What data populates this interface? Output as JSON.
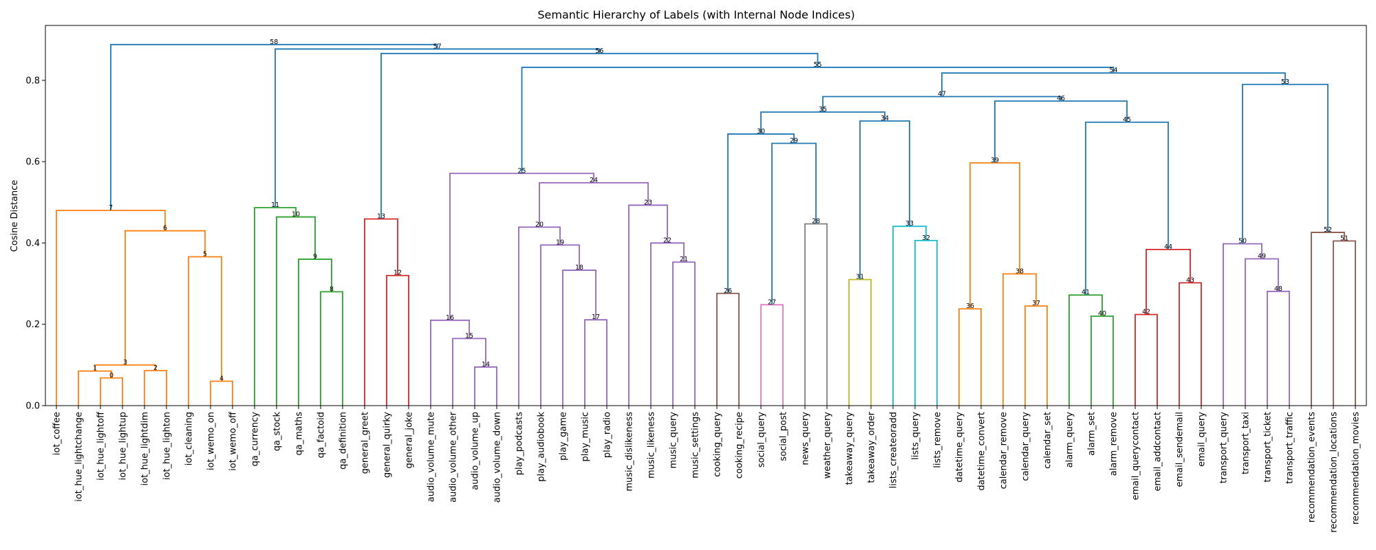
{
  "chart_data": {
    "type": "dendrogram",
    "title": "Semantic Hierarchy of Labels (with Internal Node Indices)",
    "xlabel": "",
    "ylabel": "Cosine Distance",
    "ylim": [
      0,
      0.935
    ],
    "yticks": [
      "0.0",
      "0.2",
      "0.4",
      "0.6",
      "0.8"
    ],
    "ytick_values": [
      0,
      0.2,
      0.4,
      0.6,
      0.8
    ],
    "grid": false,
    "leaves": [
      "iot_coffee",
      "iot_hue_lightchange",
      "iot_hue_lightoff",
      "iot_hue_lightup",
      "iot_hue_lightdim",
      "iot_hue_lighton",
      "iot_cleaning",
      "iot_wemo_on",
      "iot_wemo_off",
      "qa_currency",
      "qa_stock",
      "qa_maths",
      "qa_factoid",
      "qa_definition",
      "general_greet",
      "general_quirky",
      "general_joke",
      "audio_volume_mute",
      "audio_volume_other",
      "audio_volume_up",
      "audio_volume_down",
      "play_podcasts",
      "play_audiobook",
      "play_game",
      "play_music",
      "play_radio",
      "music_dislikeness",
      "music_likeness",
      "music_query",
      "music_settings",
      "cooking_query",
      "cooking_recipe",
      "social_query",
      "social_post",
      "news_query",
      "weather_query",
      "takeaway_query",
      "takeaway_order",
      "lists_createoradd",
      "lists_query",
      "lists_remove",
      "datetime_query",
      "datetime_convert",
      "calendar_remove",
      "calendar_query",
      "calendar_set",
      "alarm_query",
      "alarm_set",
      "alarm_remove",
      "email_querycontact",
      "email_addcontact",
      "email_sendemail",
      "email_query",
      "transport_query",
      "transport_taxi",
      "transport_ticket",
      "transport_traffic",
      "recommendation_events",
      "recommendation_locations",
      "recommendation_movies"
    ],
    "colors": {
      "above": "#1f77b4",
      "orange": "#ff7f0e",
      "green": "#2ca02c",
      "red": "#d62728",
      "purple": "#9467bd",
      "brown": "#8c564b",
      "pink": "#e377c2",
      "gray": "#7f7f7f",
      "olive": "#bcbd22",
      "cyan": "#17becf"
    },
    "merges": [
      {
        "id": 0,
        "left": "iot_hue_lightoff",
        "right": "iot_hue_lightup",
        "height": 0.068,
        "color": "orange"
      },
      {
        "id": 1,
        "left": "iot_hue_lightchange",
        "right": 0,
        "height": 0.085,
        "color": "orange"
      },
      {
        "id": 2,
        "left": "iot_hue_lightdim",
        "right": "iot_hue_lighton",
        "height": 0.086,
        "color": "orange"
      },
      {
        "id": 3,
        "left": 1,
        "right": 2,
        "height": 0.1,
        "color": "orange"
      },
      {
        "id": 4,
        "left": "iot_wemo_on",
        "right": "iot_wemo_off",
        "height": 0.06,
        "color": "orange"
      },
      {
        "id": 5,
        "left": "iot_cleaning",
        "right": 4,
        "height": 0.366,
        "color": "orange"
      },
      {
        "id": 6,
        "left": 3,
        "right": 5,
        "height": 0.43,
        "color": "orange"
      },
      {
        "id": 7,
        "left": "iot_coffee",
        "right": 6,
        "height": 0.48,
        "color": "orange"
      },
      {
        "id": 8,
        "left": "qa_factoid",
        "right": "qa_definition",
        "height": 0.28,
        "color": "green"
      },
      {
        "id": 9,
        "left": "qa_maths",
        "right": 8,
        "height": 0.36,
        "color": "green"
      },
      {
        "id": 10,
        "left": "qa_stock",
        "right": 9,
        "height": 0.464,
        "color": "green"
      },
      {
        "id": 11,
        "left": "qa_currency",
        "right": 10,
        "height": 0.487,
        "color": "green"
      },
      {
        "id": 12,
        "left": "general_quirky",
        "right": "general_joke",
        "height": 0.32,
        "color": "red"
      },
      {
        "id": 13,
        "left": "general_greet",
        "right": 12,
        "height": 0.459,
        "color": "red"
      },
      {
        "id": 14,
        "left": "audio_volume_up",
        "right": "audio_volume_down",
        "height": 0.095,
        "color": "purple"
      },
      {
        "id": 15,
        "left": "audio_volume_other",
        "right": 14,
        "height": 0.165,
        "color": "purple"
      },
      {
        "id": 16,
        "left": "audio_volume_mute",
        "right": 15,
        "height": 0.21,
        "color": "purple"
      },
      {
        "id": 17,
        "left": "play_music",
        "right": "play_radio",
        "height": 0.211,
        "color": "purple"
      },
      {
        "id": 18,
        "left": "play_game",
        "right": 17,
        "height": 0.333,
        "color": "purple"
      },
      {
        "id": 19,
        "left": "play_audiobook",
        "right": 18,
        "height": 0.395,
        "color": "purple"
      },
      {
        "id": 20,
        "left": "play_podcasts",
        "right": 19,
        "height": 0.439,
        "color": "purple"
      },
      {
        "id": 21,
        "left": "music_query",
        "right": "music_settings",
        "height": 0.353,
        "color": "purple"
      },
      {
        "id": 22,
        "left": "music_likeness",
        "right": 21,
        "height": 0.4,
        "color": "purple"
      },
      {
        "id": 23,
        "left": "music_dislikeness",
        "right": 22,
        "height": 0.493,
        "color": "purple"
      },
      {
        "id": 24,
        "left": 20,
        "right": 23,
        "height": 0.548,
        "color": "purple"
      },
      {
        "id": 25,
        "left": 16,
        "right": 24,
        "height": 0.571,
        "color": "purple"
      },
      {
        "id": 26,
        "left": "cooking_query",
        "right": "cooking_recipe",
        "height": 0.276,
        "color": "brown"
      },
      {
        "id": 27,
        "left": "social_query",
        "right": "social_post",
        "height": 0.248,
        "color": "pink"
      },
      {
        "id": 28,
        "left": "news_query",
        "right": "weather_query",
        "height": 0.447,
        "color": "gray"
      },
      {
        "id": 29,
        "left": 27,
        "right": 28,
        "height": 0.645,
        "color": "above"
      },
      {
        "id": 30,
        "left": 26,
        "right": 29,
        "height": 0.668,
        "color": "above"
      },
      {
        "id": 31,
        "left": "takeaway_query",
        "right": "takeaway_order",
        "height": 0.31,
        "color": "olive"
      },
      {
        "id": 32,
        "left": "lists_query",
        "right": "lists_remove",
        "height": 0.406,
        "color": "cyan"
      },
      {
        "id": 33,
        "left": "lists_createoradd",
        "right": 32,
        "height": 0.441,
        "color": "cyan"
      },
      {
        "id": 34,
        "left": 31,
        "right": 33,
        "height": 0.7,
        "color": "above"
      },
      {
        "id": 35,
        "left": 30,
        "right": 34,
        "height": 0.722,
        "color": "above"
      },
      {
        "id": 36,
        "left": "datetime_query",
        "right": "datetime_convert",
        "height": 0.238,
        "color": "orange"
      },
      {
        "id": 37,
        "left": "calendar_query",
        "right": "calendar_set",
        "height": 0.245,
        "color": "orange"
      },
      {
        "id": 38,
        "left": "calendar_remove",
        "right": 37,
        "height": 0.324,
        "color": "orange"
      },
      {
        "id": 39,
        "left": 36,
        "right": 38,
        "height": 0.597,
        "color": "orange"
      },
      {
        "id": 40,
        "left": "alarm_set",
        "right": "alarm_remove",
        "height": 0.22,
        "color": "green"
      },
      {
        "id": 41,
        "left": "alarm_query",
        "right": 40,
        "height": 0.272,
        "color": "green"
      },
      {
        "id": 42,
        "left": "email_querycontact",
        "right": "email_addcontact",
        "height": 0.224,
        "color": "red"
      },
      {
        "id": 43,
        "left": "email_sendemail",
        "right": "email_query",
        "height": 0.302,
        "color": "red"
      },
      {
        "id": 44,
        "left": 42,
        "right": 43,
        "height": 0.384,
        "color": "red"
      },
      {
        "id": 45,
        "left": 41,
        "right": 44,
        "height": 0.697,
        "color": "above"
      },
      {
        "id": 46,
        "left": 39,
        "right": 45,
        "height": 0.749,
        "color": "above"
      },
      {
        "id": 47,
        "left": 35,
        "right": 46,
        "height": 0.76,
        "color": "above"
      },
      {
        "id": 48,
        "left": "transport_ticket",
        "right": "transport_traffic",
        "height": 0.281,
        "color": "purple"
      },
      {
        "id": 49,
        "left": "transport_taxi",
        "right": 48,
        "height": 0.361,
        "color": "purple"
      },
      {
        "id": 50,
        "left": "transport_query",
        "right": 49,
        "height": 0.398,
        "color": "purple"
      },
      {
        "id": 51,
        "left": "recommendation_locations",
        "right": "recommendation_movies",
        "height": 0.405,
        "color": "brown"
      },
      {
        "id": 52,
        "left": "recommendation_events",
        "right": 51,
        "height": 0.426,
        "color": "brown"
      },
      {
        "id": 53,
        "left": 50,
        "right": 52,
        "height": 0.79,
        "color": "above"
      },
      {
        "id": 54,
        "left": 47,
        "right": 53,
        "height": 0.818,
        "color": "above"
      },
      {
        "id": 55,
        "left": 25,
        "right": 54,
        "height": 0.832,
        "color": "above"
      },
      {
        "id": 56,
        "left": 13,
        "right": 55,
        "height": 0.866,
        "color": "above"
      },
      {
        "id": 57,
        "left": 11,
        "right": 56,
        "height": 0.877,
        "color": "above"
      },
      {
        "id": 58,
        "left": 7,
        "right": 57,
        "height": 0.888,
        "color": "above"
      }
    ]
  }
}
